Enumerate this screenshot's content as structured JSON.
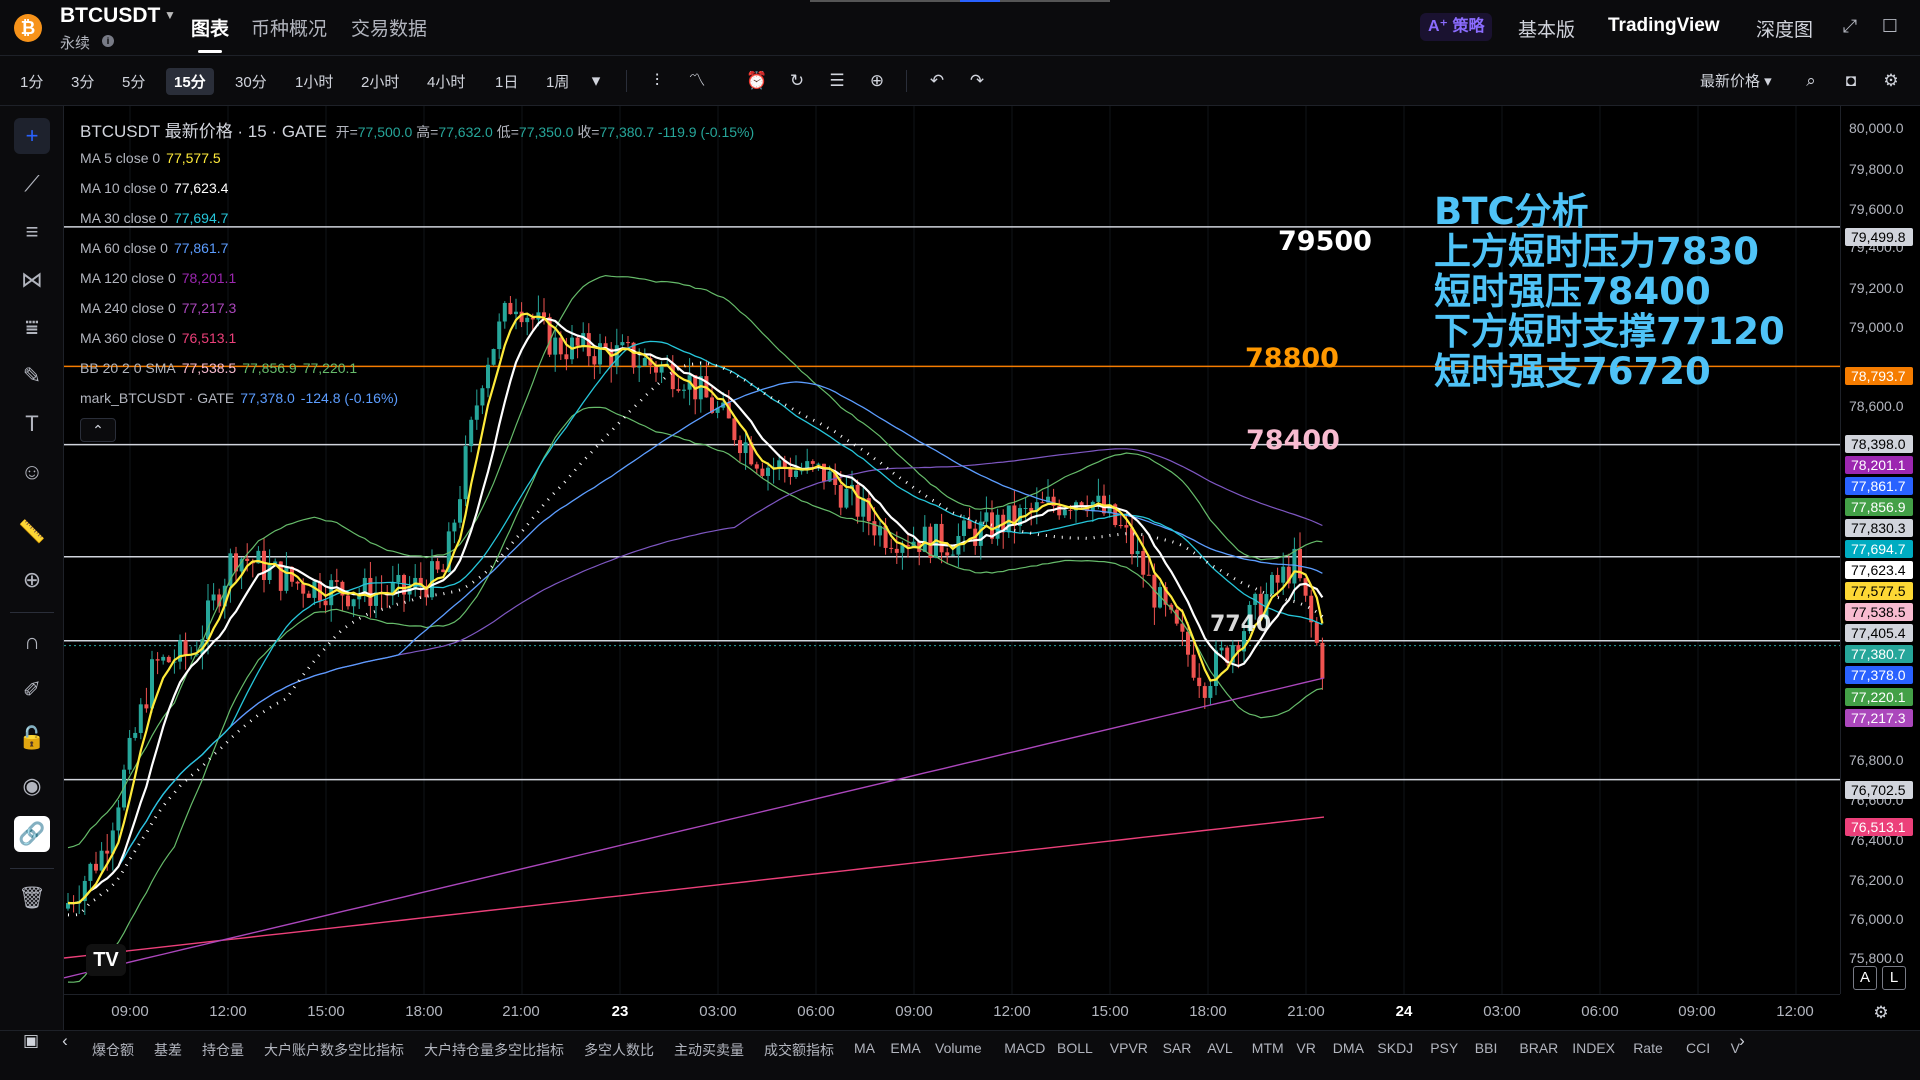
{
  "header": {
    "logo_glyph": "₿",
    "symbol": "BTCUSDT",
    "subtitle": "永续",
    "info_glyph": "i",
    "tabs": [
      {
        "label": "图表",
        "active": true
      },
      {
        "label": "币种概况",
        "active": false
      },
      {
        "label": "交易数据",
        "active": false
      }
    ],
    "ai_badge": "A⁺ 策略",
    "right_tabs": [
      "基本版",
      "TradingView",
      "深度图"
    ]
  },
  "toolbar": {
    "intervals": [
      "1分",
      "3分",
      "5分",
      "15分",
      "30分",
      "1小时",
      "2小时",
      "4小时",
      "1日",
      "1周"
    ],
    "active_interval": "15分",
    "price_type": "最新价格 ▾"
  },
  "legend": {
    "title": "BTCUSDT 最新价格 · 15 · GATE",
    "open_label": "开=",
    "open": "77,500.0",
    "high_label": "高=",
    "high": "77,632.0",
    "low_label": "低=",
    "low": "77,350.0",
    "close_label": "收=",
    "close": "77,380.7",
    "change": "-119.9 (-0.15%)",
    "indicators": [
      {
        "label": "MA 5 close 0",
        "value": "77,577.5",
        "color": "#ffeb3b"
      },
      {
        "label": "MA 10 close 0",
        "value": "77,623.4",
        "color": "#ffffff"
      },
      {
        "label": "MA 30 close 0",
        "value": "77,694.7",
        "color": "#26c6da"
      },
      {
        "label": "MA 60 close 0",
        "value": "77,861.7",
        "color": "#5c9dff"
      },
      {
        "label": "MA 120 close 0",
        "value": "78,201.1",
        "color": "#9c27b0"
      },
      {
        "label": "MA 240 close 0",
        "value": "77,217.3",
        "color": "#ab47bc"
      },
      {
        "label": "MA 360 close 0",
        "value": "76,513.1",
        "color": "#ec407a"
      },
      {
        "label": "BB 20 2 0 SMA",
        "value": "77,538.5",
        "color": "#f8bbd0",
        "extra1": "77,856.9",
        "extra2": "77,220.1",
        "extra_color": "#66bb6a"
      },
      {
        "label": "mark_BTCUSDT · GATE",
        "value": "77,378.0",
        "color": "#5c9dff",
        "extra1": "-124.8 (-0.16%)",
        "extra_color": "#5c9dff"
      }
    ]
  },
  "annotation": {
    "lines": [
      "BTC分析",
      "上方短时压力7830",
      "短时强压78400",
      "下方短时支撑77120",
      "短时强支76720"
    ],
    "color": "#4fc3f7"
  },
  "levels": [
    {
      "label": "79500",
      "color": "#ffffff"
    },
    {
      "label": "78800",
      "color": "#ff9800"
    },
    {
      "label": "78400",
      "color": "#f8bbd0"
    }
  ],
  "price_label_in_chart": "7740",
  "price_axis": {
    "ticks": [
      "80,000.0",
      "79,800.0",
      "79,600.0",
      "79,400.0",
      "79,200.0",
      "79,000.0",
      "78,600.0",
      "76,800.0",
      "76,600.0",
      "76,400.0",
      "76,200.0",
      "76,000.0",
      "75,800.0"
    ],
    "tags": [
      {
        "text": "79,499.8",
        "bg": "#d1d4dc",
        "fg": "#000000"
      },
      {
        "text": "78,793.7",
        "bg": "#f57c00",
        "fg": "#ffffff"
      },
      {
        "text": "78,398.0",
        "bg": "#d1d4dc",
        "fg": "#000000"
      },
      {
        "text": "78,201.1",
        "bg": "#9c27b0",
        "fg": "#ffffff"
      },
      {
        "text": "77,861.7",
        "bg": "#2962ff",
        "fg": "#ffffff"
      },
      {
        "text": "77,856.9",
        "bg": "#43a047",
        "fg": "#ffffff"
      },
      {
        "text": "77,830.3",
        "bg": "#d1d4dc",
        "fg": "#000000"
      },
      {
        "text": "77,694.7",
        "bg": "#00acc1",
        "fg": "#ffffff"
      },
      {
        "text": "77,623.4",
        "bg": "#ffffff",
        "fg": "#000000"
      },
      {
        "text": "77,577.5",
        "bg": "#fdd835",
        "fg": "#000000"
      },
      {
        "text": "77,538.5",
        "bg": "#f8bbd0",
        "fg": "#000000"
      },
      {
        "text": "77,405.4",
        "bg": "#d1d4dc",
        "fg": "#000000"
      },
      {
        "text": "77,380.7",
        "bg": "#26a69a",
        "fg": "#ffffff"
      },
      {
        "text": "77,378.0",
        "bg": "#2962ff",
        "fg": "#ffffff"
      },
      {
        "text": "77,220.1",
        "bg": "#43a047",
        "fg": "#ffffff"
      },
      {
        "text": "77,217.3",
        "bg": "#ab47bc",
        "fg": "#ffffff"
      },
      {
        "text": "76,702.5",
        "bg": "#d1d4dc",
        "fg": "#000000"
      },
      {
        "text": "76,513.1",
        "bg": "#ec407a",
        "fg": "#ffffff"
      }
    ]
  },
  "time_axis": {
    "ticks": [
      {
        "label": "09:00",
        "bold": false
      },
      {
        "label": "12:00",
        "bold": false
      },
      {
        "label": "15:00",
        "bold": false
      },
      {
        "label": "18:00",
        "bold": false
      },
      {
        "label": "21:00",
        "bold": false
      },
      {
        "label": "23",
        "bold": true
      },
      {
        "label": "03:00",
        "bold": false
      },
      {
        "label": "06:00",
        "bold": false
      },
      {
        "label": "09:00",
        "bold": false
      },
      {
        "label": "12:00",
        "bold": false
      },
      {
        "label": "15:00",
        "bold": false
      },
      {
        "label": "18:00",
        "bold": false
      },
      {
        "label": "21:00",
        "bold": false
      },
      {
        "label": "24",
        "bold": true
      },
      {
        "label": "03:00",
        "bold": false
      },
      {
        "label": "06:00",
        "bold": false
      },
      {
        "label": "09:00",
        "bold": false
      },
      {
        "label": "12:00",
        "bold": false
      }
    ]
  },
  "scale_buttons": {
    "auto": "A",
    "log": "L"
  },
  "tv_logo": "TV",
  "bottom_indicators": [
    "爆仓额",
    "基差",
    "持仓量",
    "大户账户数多空比指标",
    "大户持仓量多空比指标",
    "多空人数比",
    "主动买卖量",
    "成交额指标",
    "MA",
    "EMA",
    "Volume",
    "MACD",
    "BOLL",
    "VPVR",
    "SAR",
    "AVL",
    "MTM",
    "VR",
    "DMA",
    "SKDJ",
    "PSY",
    "BBI",
    "BRAR",
    "INDEX",
    "Rate",
    "CCI",
    "V"
  ],
  "colors": {
    "up": "#26a69a",
    "down": "#ef5350",
    "background": "#000000",
    "accent": "#2962ff"
  }
}
